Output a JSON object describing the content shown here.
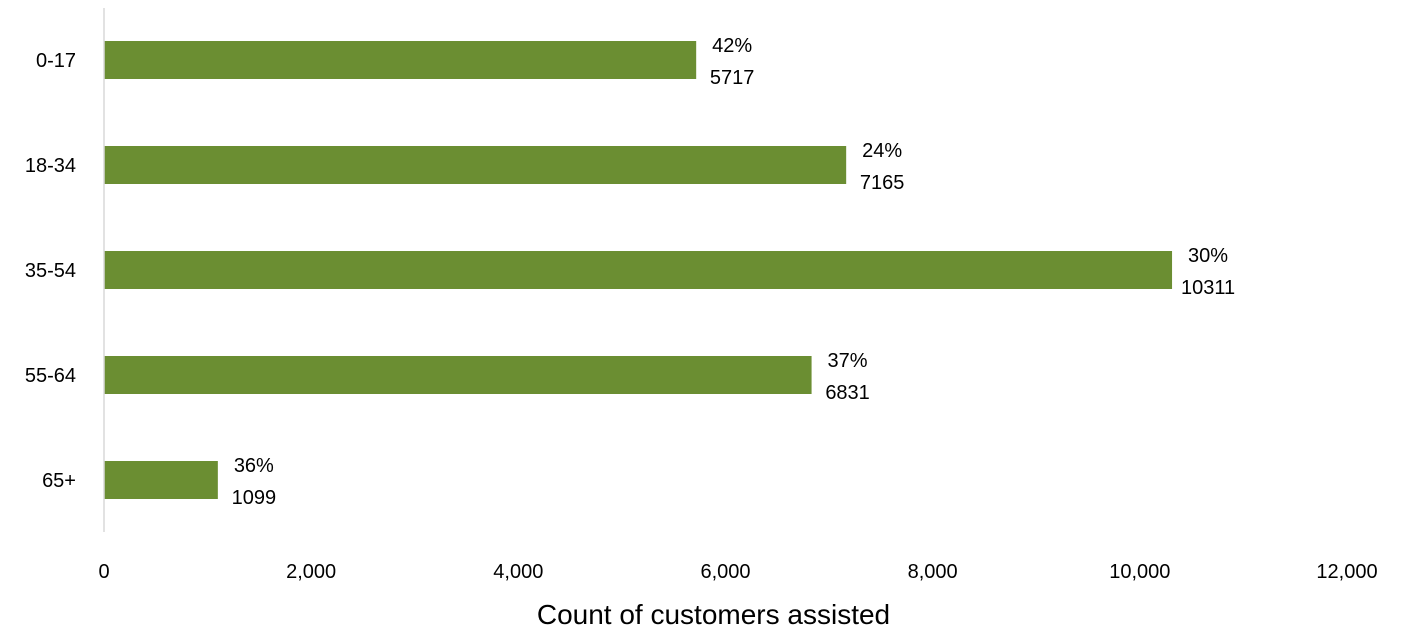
{
  "chart_data": {
    "type": "bar",
    "orientation": "horizontal",
    "categories": [
      "0-17",
      "18-34",
      "35-54",
      "55-64",
      "65+"
    ],
    "values": [
      5717,
      7165,
      10311,
      6831,
      1099
    ],
    "percent_labels": [
      "42%",
      "24%",
      "30%",
      "37%",
      "36%"
    ],
    "value_labels": [
      "5717",
      "7165",
      "10311",
      "6831",
      "1099"
    ],
    "xlabel": "Count of customers assisted",
    "ylabel": "",
    "xlim": [
      0,
      12000
    ],
    "x_ticks": [
      0,
      2000,
      4000,
      6000,
      8000,
      10000,
      12000
    ],
    "x_tick_labels": [
      "0",
      "2,000",
      "4,000",
      "6,000",
      "8,000",
      "10,000",
      "12,000"
    ],
    "grid": false,
    "legend": "none",
    "bar_color": "#6b8e32"
  }
}
